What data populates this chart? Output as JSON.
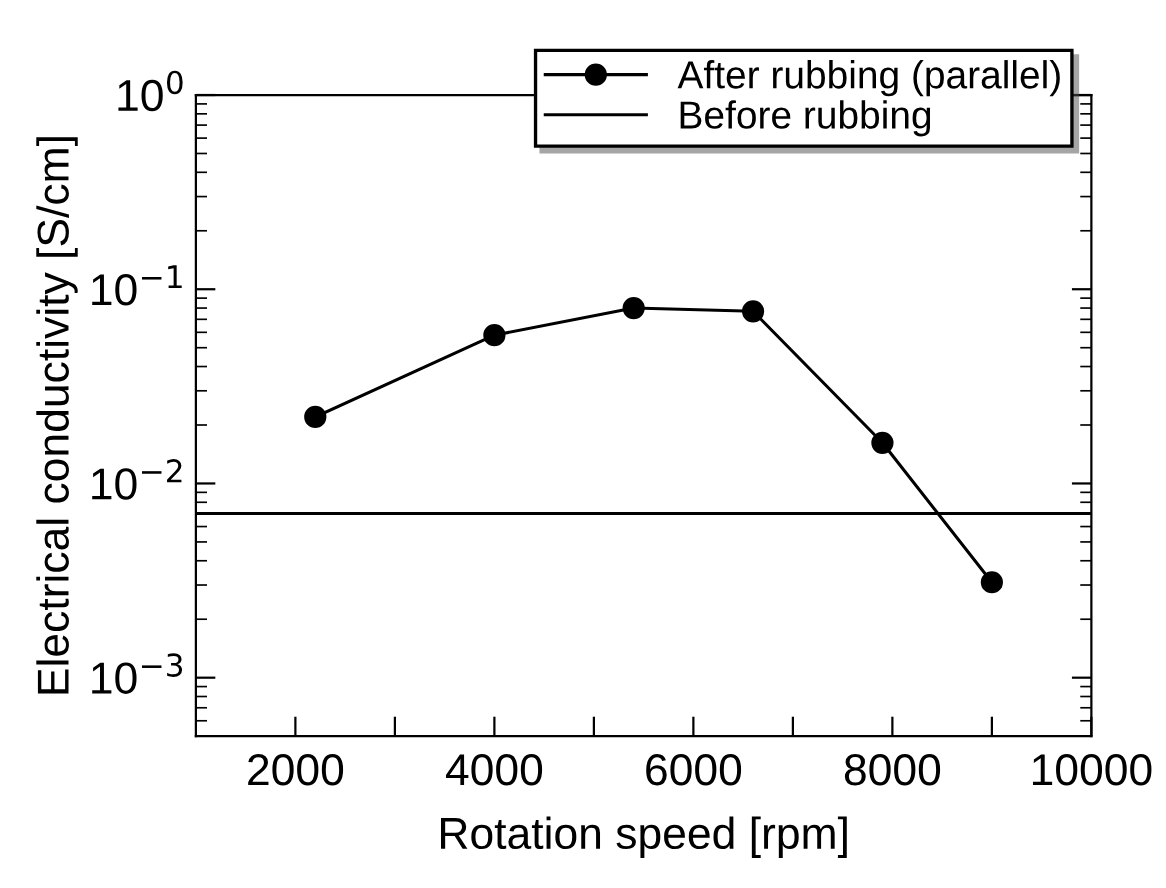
{
  "chart_data": {
    "type": "line",
    "xlabel": "Rotation speed [rpm]",
    "ylabel": "Electrical conductivity [S/cm]",
    "log": "y",
    "xlim": [
      1000,
      10000
    ],
    "ylim": [
      0.0005,
      1
    ],
    "xticks": [
      2000,
      {
        "value": 3000,
        "label": null
      },
      4000,
      {
        "value": 5000,
        "label": null
      },
      6000,
      {
        "value": 7000,
        "label": null
      },
      8000,
      {
        "value": 9000,
        "label": null
      },
      10000
    ],
    "yticks": [
      {
        "value": 0.001,
        "label": "10$^{−3}$"
      },
      {
        "value": 0.01,
        "label": "10$^{−2}$"
      },
      {
        "value": 0.1,
        "label": "10$^{−1}$"
      },
      {
        "value": 1,
        "label": "10$^{0}$"
      }
    ],
    "legend": "top right",
    "grid": false,
    "series": [
      {
        "name": "After rubbing (parallel)",
        "color": "#000000",
        "marker": "circle",
        "x": [
          2200,
          4000,
          5400,
          6600,
          7900,
          9000
        ],
        "values": [
          0.022,
          0.058,
          0.08,
          0.077,
          0.0162,
          0.0031
        ]
      },
      {
        "name": "Before rubbing",
        "color": "#000000",
        "marker": "none",
        "x": [
          1000,
          10000
        ],
        "values": [
          0.007,
          0.007
        ]
      }
    ]
  }
}
